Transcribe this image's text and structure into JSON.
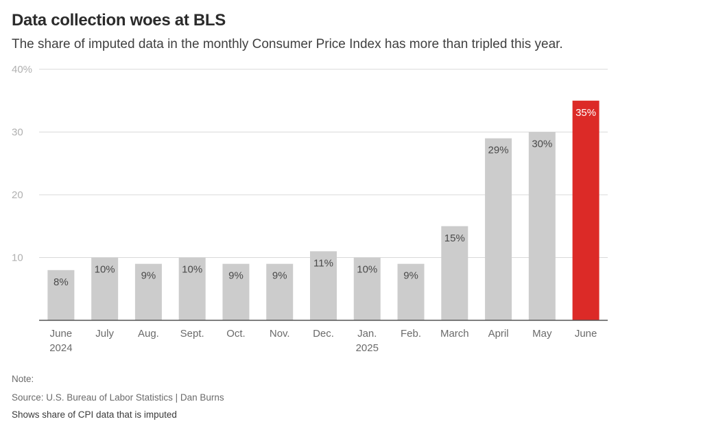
{
  "title": "Data collection woes at BLS",
  "subtitle": "The share of imputed data in the monthly Consumer Price Index has more than tripled this year.",
  "colors": {
    "bar": "#cccccc",
    "highlight": "#dc2a27",
    "grid": "#d9d9d9",
    "axis": "#555555"
  },
  "chart_data": {
    "type": "bar",
    "title": "Data collection woes at BLS",
    "xlabel": "",
    "ylabel": "",
    "ylim": [
      0,
      40
    ],
    "yticks": [
      {
        "value": 10,
        "label": "10"
      },
      {
        "value": 20,
        "label": "20"
      },
      {
        "value": 30,
        "label": "30"
      },
      {
        "value": 40,
        "label": "40%"
      }
    ],
    "categories": [
      [
        "June",
        "2024"
      ],
      [
        "July"
      ],
      [
        "Aug."
      ],
      [
        "Sept."
      ],
      [
        "Oct."
      ],
      [
        "Nov."
      ],
      [
        "Dec."
      ],
      [
        "Jan.",
        "2025"
      ],
      [
        "Feb."
      ],
      [
        "March"
      ],
      [
        "April"
      ],
      [
        "May"
      ],
      [
        "June"
      ]
    ],
    "values": [
      8,
      10,
      9,
      10,
      9,
      9,
      11,
      10,
      9,
      15,
      29,
      30,
      35
    ],
    "value_labels": [
      "8%",
      "10%",
      "9%",
      "10%",
      "9%",
      "9%",
      "11%",
      "10%",
      "9%",
      "15%",
      "29%",
      "30%",
      "35%"
    ],
    "highlight_index": 12,
    "grid": true,
    "legend": "none"
  },
  "footer": {
    "note": "Note:",
    "source": "Source: U.S. Bureau of Labor Statistics | Dan Burns",
    "description": "Shows share of CPI data that is imputed"
  }
}
